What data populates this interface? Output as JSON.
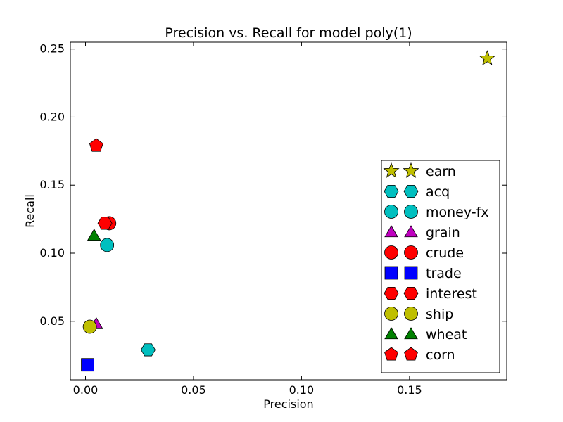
{
  "chart_data": {
    "type": "scatter",
    "title": "Precision vs. Recall for model poly(1)",
    "xlabel": "Precision",
    "ylabel": "Recall",
    "xlim": [
      -0.007,
      0.195
    ],
    "ylim": [
      0.007,
      0.255
    ],
    "xticks": [
      {
        "value": 0.0,
        "label": "0.00"
      },
      {
        "value": 0.05,
        "label": "0.05"
      },
      {
        "value": 0.1,
        "label": "0.10"
      },
      {
        "value": 0.15,
        "label": "0.15"
      }
    ],
    "yticks": [
      {
        "value": 0.05,
        "label": "0.05"
      },
      {
        "value": 0.1,
        "label": "0.10"
      },
      {
        "value": 0.15,
        "label": "0.15"
      },
      {
        "value": 0.2,
        "label": "0.20"
      },
      {
        "value": 0.25,
        "label": "0.25"
      }
    ],
    "grid": false,
    "legend_position": "lower-right",
    "series": [
      {
        "name": "earn",
        "marker": "star",
        "color": "#bfbf00",
        "x": 0.186,
        "y": 0.243
      },
      {
        "name": "acq",
        "marker": "hexagon",
        "color": "#00bfbf",
        "x": 0.029,
        "y": 0.029
      },
      {
        "name": "money-fx",
        "marker": "circle",
        "color": "#00bfbf",
        "x": 0.01,
        "y": 0.106
      },
      {
        "name": "grain",
        "marker": "triangle",
        "color": "#bf00bf",
        "x": 0.005,
        "y": 0.048
      },
      {
        "name": "crude",
        "marker": "circle",
        "color": "#ff0000",
        "x": 0.011,
        "y": 0.122
      },
      {
        "name": "trade",
        "marker": "square",
        "color": "#0000ff",
        "x": 0.001,
        "y": 0.018
      },
      {
        "name": "interest",
        "marker": "hexagon",
        "color": "#ff0000",
        "x": 0.009,
        "y": 0.122
      },
      {
        "name": "ship",
        "marker": "circle",
        "color": "#bfbf00",
        "x": 0.002,
        "y": 0.046
      },
      {
        "name": "wheat",
        "marker": "triangle",
        "color": "#008000",
        "x": 0.004,
        "y": 0.113
      },
      {
        "name": "corn",
        "marker": "pentagon",
        "color": "#ff0000",
        "x": 0.005,
        "y": 0.179
      }
    ]
  }
}
